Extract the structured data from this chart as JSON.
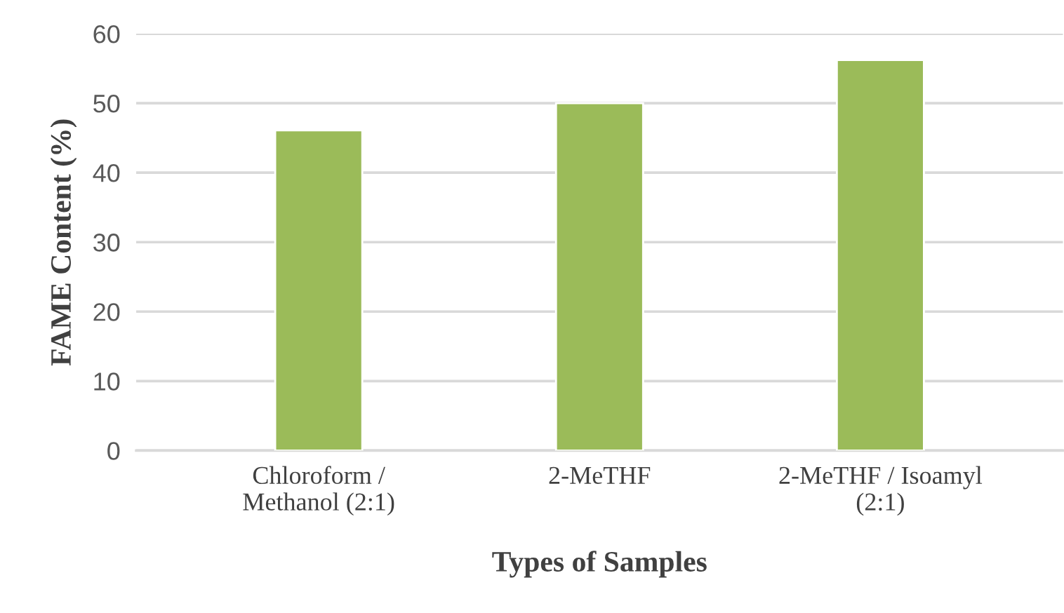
{
  "chart_data": {
    "type": "bar",
    "xlabel": "Types of Samples",
    "ylabel": "FAME Content (%)",
    "categories": [
      "Chloroform /\nMethanol (2:1)",
      "2-MeTHF",
      "2-MeTHF / Isoamyl\n(2:1)"
    ],
    "values": [
      46.1,
      50,
      56.2
    ],
    "color": "#9bbb59",
    "ylim": [
      0,
      60
    ],
    "yticks": [
      0,
      10,
      20,
      30,
      40,
      50,
      60
    ],
    "grid": "y"
  }
}
